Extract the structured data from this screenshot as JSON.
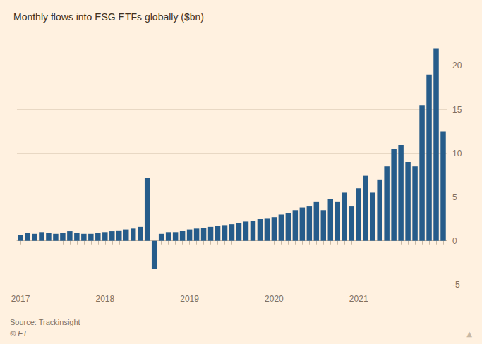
{
  "chart_data": {
    "type": "bar",
    "title": "Monthly flows into ESG ETFs globally ($bn)",
    "categories": [
      "2017",
      null,
      null,
      null,
      null,
      null,
      null,
      null,
      null,
      null,
      null,
      null,
      "2018",
      null,
      null,
      null,
      null,
      null,
      null,
      null,
      null,
      null,
      null,
      null,
      "2019",
      null,
      null,
      null,
      null,
      null,
      null,
      null,
      null,
      null,
      null,
      null,
      "2020",
      null,
      null,
      null,
      null,
      null,
      null,
      null,
      null,
      null,
      null,
      null,
      "2021",
      null,
      null,
      null,
      null,
      null,
      null,
      null,
      null,
      null,
      null,
      null,
      null
    ],
    "values": [
      0.7,
      0.9,
      0.8,
      1.0,
      0.9,
      0.8,
      0.9,
      1.1,
      0.9,
      0.8,
      0.8,
      0.9,
      1.0,
      1.1,
      1.2,
      1.3,
      1.4,
      1.6,
      7.2,
      -3.2,
      0.8,
      1.0,
      1.0,
      1.1,
      1.3,
      1.4,
      1.5,
      1.6,
      1.7,
      1.8,
      1.9,
      2.0,
      2.2,
      2.3,
      2.5,
      2.6,
      2.7,
      3.0,
      3.2,
      3.5,
      3.8,
      4.0,
      4.5,
      3.5,
      4.8,
      4.5,
      5.5,
      4.0,
      6.0,
      7.5,
      5.5,
      7.0,
      8.5,
      10.5,
      11.0,
      9.0,
      8.5,
      15.5,
      19.0,
      22.0,
      12.5
    ],
    "color": "#265c8a",
    "ylim": [
      -5.5,
      23.5
    ],
    "yticks": [
      -5,
      0,
      5,
      10,
      15,
      20
    ],
    "grid": true,
    "annotations": [
      "Source: Trackinsight",
      "© FT",
      "▲"
    ]
  }
}
